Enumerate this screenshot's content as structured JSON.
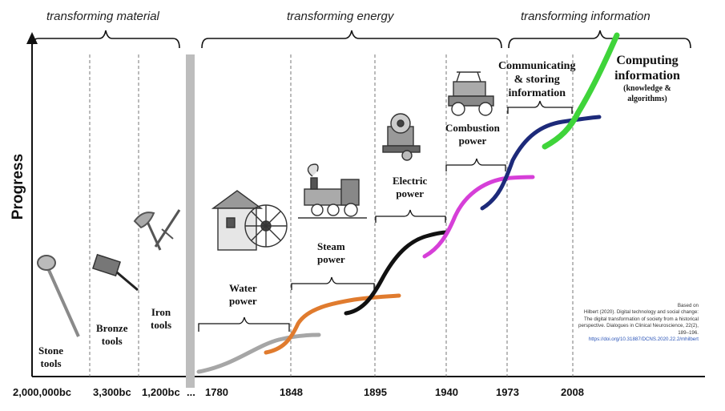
{
  "axis": {
    "ylabel": "Progress"
  },
  "eras": [
    {
      "label": "transforming material"
    },
    {
      "label": "transforming energy"
    },
    {
      "label": "transforming information"
    }
  ],
  "ticks": [
    "2,000,000bc",
    "3,300bc",
    "1,200bc",
    "...",
    "1780",
    "1848",
    "1895",
    "1940",
    "1973",
    "2008"
  ],
  "stages": [
    {
      "line1": "Stone",
      "line2": "tools",
      "line3": ""
    },
    {
      "line1": "Bronze",
      "line2": "tools",
      "line3": ""
    },
    {
      "line1": "Iron",
      "line2": "tools",
      "line3": ""
    },
    {
      "line1": "Water",
      "line2": "power",
      "line3": ""
    },
    {
      "line1": "Steam",
      "line2": "power",
      "line3": ""
    },
    {
      "line1": "Electric",
      "line2": "power",
      "line3": ""
    },
    {
      "line1": "Combustion",
      "line2": "power",
      "line3": ""
    },
    {
      "line1": "Communicating",
      "line2": "& storing",
      "line3": "information"
    },
    {
      "line1": "Computing",
      "line2": "information",
      "line3": "(knowledge & algorithms)"
    }
  ],
  "curves": [
    {
      "stage": "Water power",
      "color": "#a6a6a6"
    },
    {
      "stage": "Steam power",
      "color": "#e07b2e"
    },
    {
      "stage": "Electric power",
      "color": "#111111"
    },
    {
      "stage": "Combustion power",
      "color": "#d63fd8"
    },
    {
      "stage": "Communicating & storing information",
      "color": "#1d2a7a"
    },
    {
      "stage": "Computing information",
      "color": "#3fd43a"
    }
  ],
  "citation": {
    "lead": "Based on",
    "text": "Hilbert (2020). Digital technology and social change: The digital transformation of society from a historical perspective. Dialogues in Clinical Neuroscience, 22(2), 189–196.",
    "doi": "https://doi.org/10.31887/DCNS.2020.22.2/mhilbert"
  }
}
